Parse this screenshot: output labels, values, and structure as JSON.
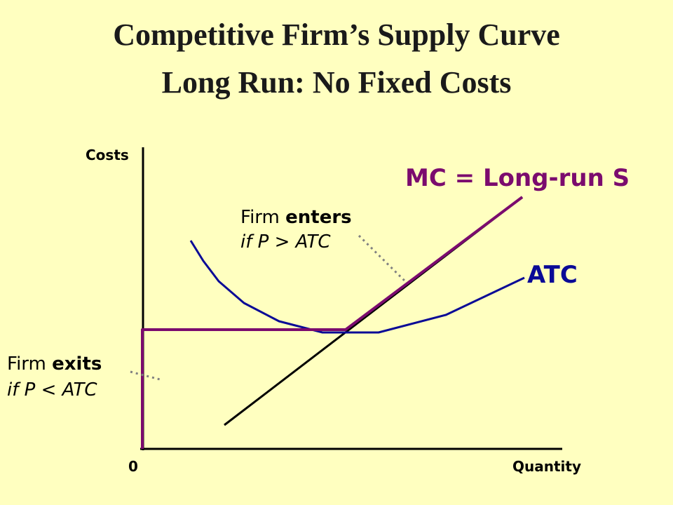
{
  "slide": {
    "title_line1": "Competitive Firm’s Supply Curve",
    "title_line2": "Long Run: No Fixed Costs"
  },
  "axes": {
    "y_label": "Costs",
    "x_label": "Quantity",
    "origin_label": "0"
  },
  "curve_labels": {
    "mc": "MC = Long-run S",
    "atc": "ATC"
  },
  "annotations": {
    "enters_prefix": "Firm ",
    "enters_bold": "enters",
    "enters_cond": "if P > ATC",
    "exits_prefix": "Firm ",
    "exits_bold": "exits",
    "exits_cond": "if P < ATC"
  },
  "colors": {
    "background": "#FFFFC0",
    "mc_supply": "#7B0B6E",
    "atc": "#0A0A96",
    "axes": "#000000",
    "leader": "#808080"
  }
}
